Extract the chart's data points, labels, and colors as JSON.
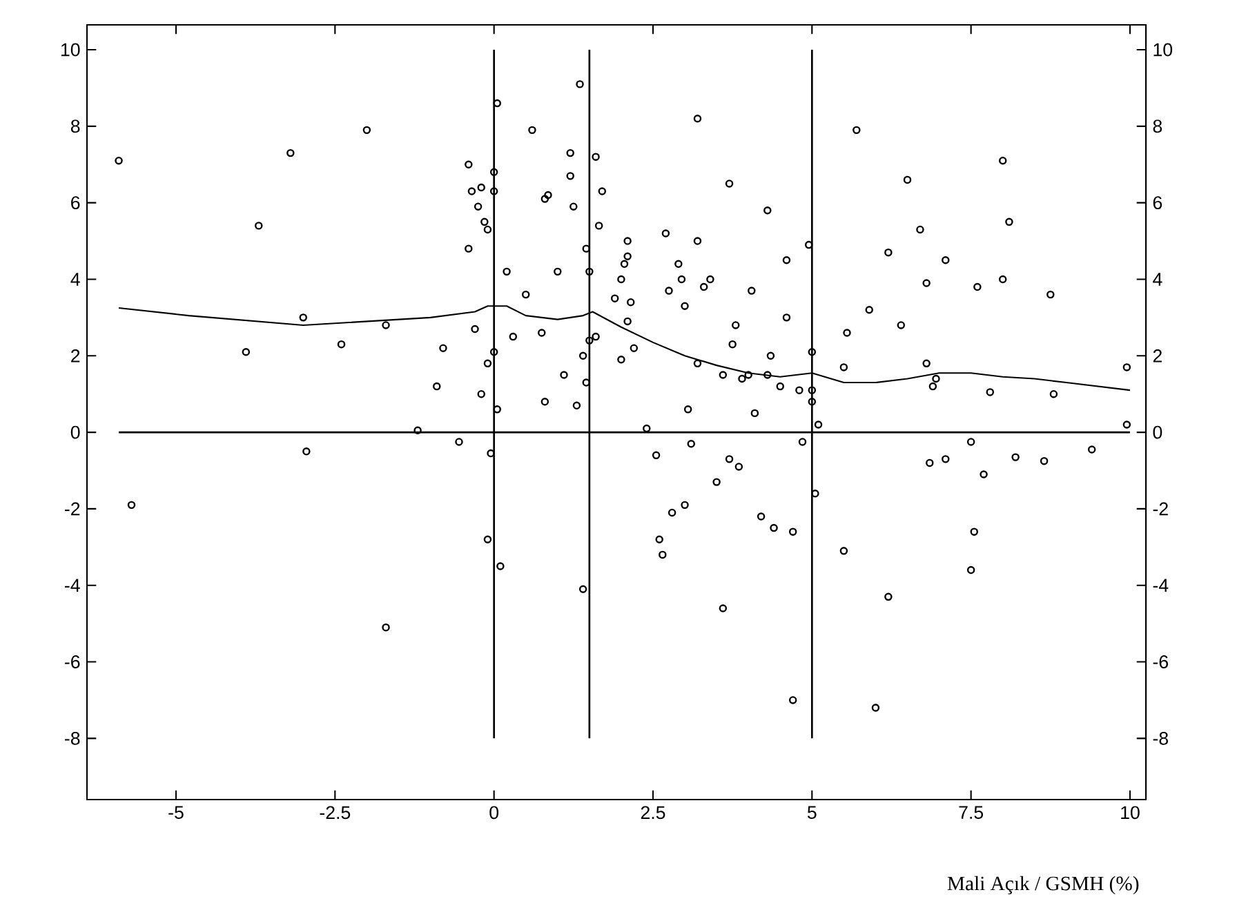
{
  "chart_data": {
    "type": "scatter",
    "xlabel": "Mali Açık / GSMH (%)",
    "xlim": [
      -6.4,
      10.25
    ],
    "ylim": [
      -9.6,
      10.65
    ],
    "y2lim": [
      -9.6,
      10.65
    ],
    "xticks": [
      -5,
      {
        "value": -2.5,
        "label": "-2.5"
      },
      0,
      {
        "value": 2.5,
        "label": "2.5"
      },
      5,
      {
        "value": 7.5,
        "label": "7.5"
      },
      10
    ],
    "yticks": [
      -8,
      -6,
      -4,
      -2,
      0,
      2,
      4,
      6,
      8,
      10
    ],
    "y2ticks": [
      -8,
      -6,
      -4,
      -2,
      0,
      2,
      4,
      6,
      8,
      10
    ],
    "grid": false,
    "ref_lines": [
      {
        "axis": "x",
        "value": 0,
        "color": "#000000"
      },
      {
        "axis": "x",
        "value": 1.5,
        "color": "#000000"
      },
      {
        "axis": "x",
        "value": 5,
        "color": "#000000"
      },
      {
        "axis": "y",
        "value": 0,
        "color": "#000000"
      }
    ],
    "series": [
      {
        "color": "#000000",
        "marker": "circle",
        "x": [
          -5.9,
          -5.7,
          -3.7,
          -3.9,
          -3.2,
          -3.0,
          -2.95,
          -2.0,
          -2.4,
          -1.7,
          -1.7,
          -1.2,
          -0.9,
          -0.8,
          -0.55,
          -0.4,
          -0.35,
          -0.3,
          -0.4,
          -0.25,
          -0.15,
          -0.1,
          -0.2,
          -0.1,
          -0.2,
          -0.1,
          0.0,
          0.0,
          0.05,
          0.05,
          0.0,
          -0.05,
          0.1,
          0.2,
          0.3,
          0.5,
          0.6,
          0.8,
          0.85,
          0.75,
          0.8,
          1.0,
          1.1,
          1.2,
          1.2,
          1.25,
          1.3,
          1.4,
          1.35,
          1.45,
          1.5,
          1.5,
          1.45,
          1.4,
          1.6,
          1.6,
          1.7,
          1.65,
          1.9,
          2.0,
          2.05,
          2.1,
          2.15,
          2.1,
          2.1,
          2.0,
          2.2,
          2.4,
          2.55,
          2.6,
          2.65,
          2.7,
          2.75,
          2.8,
          2.9,
          2.95,
          3.0,
          3.0,
          3.05,
          3.1,
          3.2,
          3.2,
          3.2,
          3.3,
          3.4,
          3.5,
          3.6,
          3.6,
          3.7,
          3.7,
          3.75,
          3.8,
          3.85,
          3.9,
          4.0,
          4.05,
          4.1,
          4.2,
          4.3,
          4.3,
          4.35,
          4.4,
          4.5,
          4.6,
          4.6,
          4.7,
          4.7,
          4.8,
          4.85,
          4.95,
          5.0,
          5.0,
          5.0,
          5.1,
          5.05,
          5.5,
          5.5,
          5.55,
          5.7,
          5.9,
          6.0,
          6.2,
          6.2,
          6.4,
          6.5,
          6.7,
          6.8,
          6.8,
          6.85,
          6.9,
          6.95,
          7.1,
          7.1,
          7.5,
          7.5,
          7.55,
          7.6,
          7.7,
          7.8,
          8.0,
          8.0,
          8.1,
          8.2,
          8.65,
          8.75,
          8.8,
          9.4,
          9.95,
          9.95
        ],
        "values": [
          7.1,
          -1.9,
          5.4,
          2.1,
          7.3,
          3.0,
          -0.5,
          7.9,
          2.3,
          2.8,
          -5.1,
          0.05,
          1.2,
          2.2,
          -0.25,
          7.0,
          6.3,
          2.7,
          4.8,
          5.9,
          5.5,
          5.3,
          1.0,
          1.8,
          6.4,
          -2.8,
          6.8,
          6.3,
          8.6,
          0.6,
          2.1,
          -0.55,
          -3.5,
          4.2,
          2.5,
          3.6,
          7.9,
          6.1,
          6.2,
          2.6,
          0.8,
          4.2,
          1.5,
          6.7,
          7.3,
          5.9,
          0.7,
          2.0,
          9.1,
          4.8,
          4.2,
          2.4,
          1.3,
          -4.1,
          2.5,
          7.2,
          6.3,
          5.4,
          3.5,
          4.0,
          4.4,
          4.6,
          3.4,
          2.9,
          5.0,
          1.9,
          2.2,
          0.1,
          -0.6,
          -2.8,
          -3.2,
          5.2,
          3.7,
          -2.1,
          4.4,
          4.0,
          3.3,
          -1.9,
          0.6,
          -0.3,
          8.2,
          5.0,
          1.8,
          3.8,
          4.0,
          -1.3,
          -4.6,
          1.5,
          6.5,
          -0.7,
          2.3,
          2.8,
          -0.9,
          1.4,
          1.5,
          3.7,
          0.5,
          -2.2,
          5.8,
          1.5,
          2.0,
          -2.5,
          1.2,
          3.0,
          4.5,
          -2.6,
          -7.0,
          1.1,
          -0.25,
          4.9,
          2.1,
          1.1,
          0.8,
          0.2,
          -1.6,
          -3.1,
          1.7,
          2.6,
          7.9,
          3.2,
          -7.2,
          4.7,
          -4.3,
          2.8,
          6.6,
          5.3,
          1.8,
          3.9,
          -0.8,
          1.2,
          1.4,
          4.5,
          -0.7,
          -0.25,
          -3.6,
          -2.6,
          3.8,
          -1.1,
          1.05,
          4.0,
          7.1,
          5.5,
          -0.65,
          -0.75,
          3.6,
          1.0,
          -0.45,
          1.7,
          0.2
        ]
      },
      {
        "type": "line",
        "color": "#000000",
        "marker": "none",
        "line_style": "solid",
        "x": [
          -5.9,
          -4.8,
          -3.0,
          -1.0,
          -0.3,
          -0.1,
          0.2,
          0.5,
          1.0,
          1.4,
          1.55,
          2.0,
          2.5,
          3.0,
          3.5,
          4.0,
          4.5,
          5.0,
          5.5,
          6.0,
          6.5,
          7.0,
          7.5,
          8.0,
          8.5,
          9.0,
          10.0
        ],
        "values": [
          3.25,
          3.05,
          2.8,
          3.0,
          3.15,
          3.3,
          3.3,
          3.05,
          2.95,
          3.05,
          3.15,
          2.75,
          2.35,
          2.0,
          1.75,
          1.55,
          1.45,
          1.55,
          1.3,
          1.3,
          1.4,
          1.55,
          1.55,
          1.45,
          1.4,
          1.3,
          1.1
        ]
      }
    ]
  }
}
